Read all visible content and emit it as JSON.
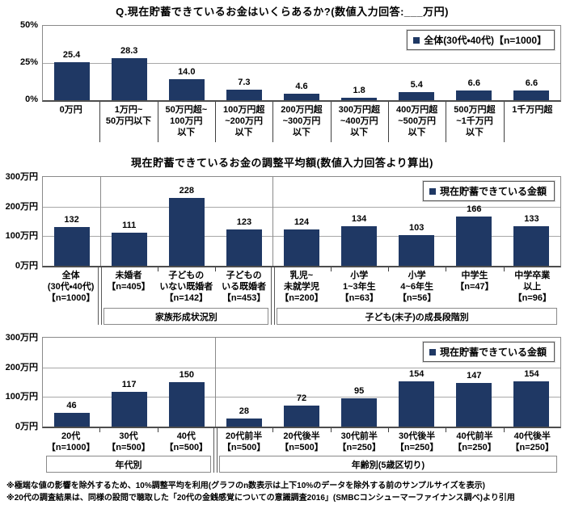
{
  "footnotes": [
    "※極端な値の影響を除外するため、10%調整平均を利用(グラフのn数表示は上下10%のデータを除外する前のサンプルサイズを表示)",
    "※20代の調査結果は、同様の設問で聴取した「20代の金銭感覚についての意識調査2016」(SMBCコンシューマーファイナンス調べ)より引用"
  ],
  "chart_data": [
    {
      "type": "bar",
      "title": "Q.現在貯蓄できているお金はいくらあるか?(数値入力回答:___万円)",
      "legend": "全体(30代・40代)【n=1000】",
      "bar_color": "#1F3864",
      "ylabel": "",
      "xlabel": "",
      "ylim": [
        0,
        50
      ],
      "yticks": [
        "50%",
        "25%",
        "0%"
      ],
      "grid": true,
      "legend_position": "top-right",
      "categories": [
        "0万円",
        "1万円~\n50万円以下",
        "50万円超~\n100万円\n以下",
        "100万円超\n~200万円\n以下",
        "200万円超\n~300万円\n以下",
        "300万円超\n~400万円\n以下",
        "400万円超\n~500万円\n以下",
        "500万円超\n~1千万円\n以下",
        "1千万円超"
      ],
      "values": [
        25.4,
        28.3,
        14.0,
        7.3,
        4.6,
        1.8,
        5.4,
        6.6,
        6.6
      ],
      "value_labels": [
        "25.4",
        "28.3",
        "14.0",
        "7.3",
        "4.6",
        "1.8",
        "5.4",
        "6.6",
        "6.6"
      ],
      "label_divider_style": "full",
      "group_breaks": [],
      "plot_separators": [],
      "groups": []
    },
    {
      "type": "bar",
      "title": "現在貯蓄できているお金の調整平均額(数値入力回答より算出)",
      "legend": "現在貯蓄できている金額",
      "bar_color": "#1F3864",
      "ylabel": "",
      "xlabel": "",
      "ylim": [
        0,
        300
      ],
      "yticks": [
        "300万円",
        "200万円",
        "100万円",
        "0万円"
      ],
      "grid": true,
      "legend_position": "top-right",
      "categories": [
        "全体\n(30代・40代)\n【n=1000】",
        "未婚者\n【n=405】",
        "子どもの\nいない既婚者\n【n=142】",
        "子どもの\nいる既婚者\n【n=453】",
        "乳児~\n未就学児\n【n=200】",
        "小学\n1~3年生\n【n=63】",
        "小学\n4~6年生\n【n=56】",
        "中学生\n【n=47】",
        "中学卒業\n以上\n【n=96】"
      ],
      "values": [
        132,
        111,
        228,
        123,
        124,
        134,
        103,
        166,
        133
      ],
      "value_labels": [
        "132",
        "111",
        "228",
        "123",
        "124",
        "134",
        "103",
        "166",
        "133"
      ],
      "label_divider_style": "tick",
      "group_breaks": [
        1,
        4
      ],
      "plot_separators": [
        1,
        4
      ],
      "groups": [
        {
          "label": "家族形成状況別",
          "start": 1,
          "span": 3
        },
        {
          "label": "子ども(末子)の成長段階別",
          "start": 4,
          "span": 5
        }
      ]
    },
    {
      "type": "bar",
      "title": "",
      "legend": "現在貯蓄できている金額",
      "bar_color": "#1F3864",
      "ylabel": "",
      "xlabel": "",
      "ylim": [
        0,
        300
      ],
      "yticks": [
        "300万円",
        "200万円",
        "100万円",
        "0万円"
      ],
      "grid": true,
      "legend_position": "top-right",
      "categories": [
        "20代\n【n=1000】",
        "30代\n【n=500】",
        "40代\n【n=500】",
        "20代前半\n【n=500】",
        "20代後半\n【n=500】",
        "30代前半\n【n=250】",
        "30代後半\n【n=250】",
        "40代前半\n【n=250】",
        "40代後半\n【n=250】"
      ],
      "values": [
        46,
        117,
        150,
        28,
        72,
        95,
        154,
        147,
        154
      ],
      "value_labels": [
        "46",
        "117",
        "150",
        "28",
        "72",
        "95",
        "154",
        "147",
        "154"
      ],
      "label_divider_style": "tick",
      "group_breaks": [
        3
      ],
      "plot_separators": [
        3
      ],
      "groups": [
        {
          "label": "年代別",
          "start": 0,
          "span": 3
        },
        {
          "label": "年齢別(5歳区切り)",
          "start": 3,
          "span": 6
        }
      ]
    }
  ]
}
